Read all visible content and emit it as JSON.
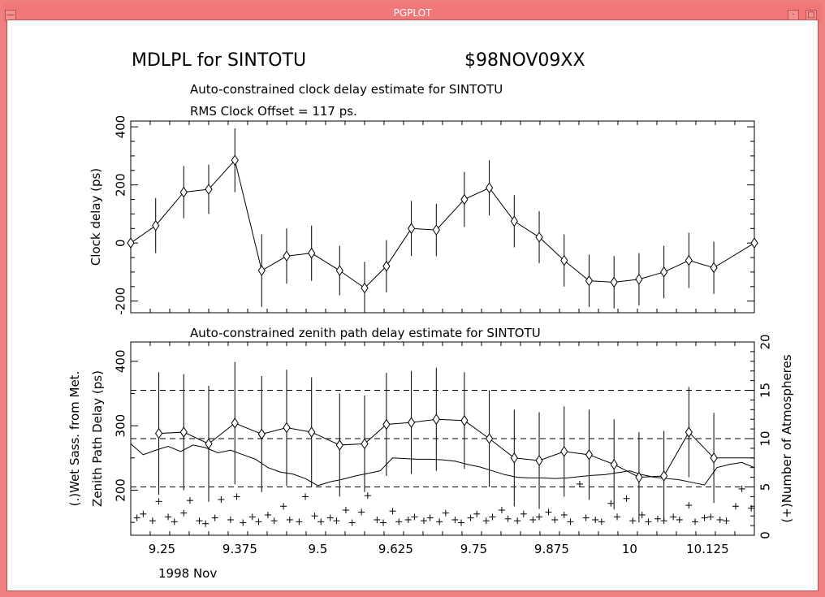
{
  "window": {
    "title": "PGPLOT"
  },
  "header": {
    "left": "MDLPL for SINTOTU",
    "right": "$98NOV09XX"
  },
  "chart_data": [
    {
      "type": "line",
      "title": "Auto-constrained clock delay estimate for SINTOTU",
      "subtitle": "RMS Clock Offset = 117 ps.",
      "ylabel": "Clock delay (ps)",
      "xlim": [
        9.2,
        10.2
      ],
      "ylim": [
        -240,
        420
      ],
      "yticks": [
        "-200",
        "0",
        "200",
        "400"
      ],
      "series": [
        {
          "x": [
            9.2,
            9.24,
            9.285,
            9.325,
            9.367,
            9.41,
            9.45,
            9.49,
            9.535,
            9.575,
            9.61,
            9.65,
            9.69,
            9.735,
            9.775,
            9.815,
            9.855,
            9.895,
            9.935,
            9.975,
            10.015,
            10.055,
            10.095,
            10.135,
            10.2
          ],
          "values": [
            0,
            60,
            175,
            185,
            285,
            -95,
            -45,
            -35,
            -95,
            -155,
            -80,
            50,
            45,
            150,
            190,
            75,
            20,
            -60,
            -130,
            -135,
            -125,
            -100,
            -60,
            -85,
            0
          ],
          "errors": [
            0,
            95,
            90,
            85,
            110,
            125,
            95,
            95,
            85,
            90,
            90,
            95,
            90,
            95,
            95,
            90,
            90,
            90,
            90,
            90,
            90,
            90,
            95,
            90,
            0
          ]
        }
      ]
    },
    {
      "type": "line",
      "title": "Auto-constrained zenith path delay estimate for SINTOTU",
      "ylabel": "Zenith Path Delay (ps)",
      "ylabel2": "(.)Wet Sass. from Met.",
      "y2label": "(+)Number of Atmospheres",
      "xlabel": "1998 Nov",
      "xlim": [
        9.2,
        10.2
      ],
      "ylim": [
        130,
        430
      ],
      "y2lim": [
        0,
        20
      ],
      "xticks": [
        "9.25",
        "9.375",
        "9.5",
        "9.625",
        "9.75",
        "9.875",
        "10",
        "10.125"
      ],
      "yticks": [
        "200",
        "300",
        "400"
      ],
      "y2ticks": [
        "0",
        "5",
        "10",
        "15",
        "20"
      ],
      "hlines_y2": [
        5,
        10,
        15
      ],
      "series": [
        {
          "x": [
            9.245,
            9.285,
            9.325,
            9.367,
            9.41,
            9.45,
            9.49,
            9.535,
            9.575,
            9.61,
            9.65,
            9.69,
            9.735,
            9.775,
            9.815,
            9.855,
            9.895,
            9.935,
            9.975,
            10.015,
            10.055,
            10.095,
            10.135,
            10.2
          ],
          "values": [
            288,
            290,
            272,
            304,
            287,
            297,
            290,
            270,
            272,
            302,
            305,
            310,
            308,
            280,
            250,
            246,
            260,
            255,
            240,
            220,
            222,
            290,
            250,
            250
          ],
          "errors": [
            95,
            90,
            90,
            95,
            90,
            90,
            85,
            80,
            75,
            80,
            80,
            80,
            75,
            75,
            75,
            75,
            70,
            70,
            70,
            70,
            70,
            70,
            70,
            0
          ]
        },
        {
          "name": "Wet Sass. from Met.",
          "x": [
            9.2,
            9.22,
            9.24,
            9.26,
            9.28,
            9.3,
            9.32,
            9.34,
            9.36,
            9.38,
            9.4,
            9.42,
            9.44,
            9.46,
            9.48,
            9.5,
            9.52,
            9.54,
            9.56,
            9.58,
            9.6,
            9.62,
            9.64,
            9.66,
            9.68,
            9.7,
            9.72,
            9.74,
            9.76,
            9.78,
            9.8,
            9.82,
            9.84,
            9.86,
            9.88,
            9.9,
            9.92,
            9.94,
            9.96,
            9.98,
            10.0,
            10.02,
            10.04,
            10.06,
            10.08,
            10.1,
            10.12,
            10.14,
            10.16,
            10.18,
            10.2
          ],
          "values": [
            272,
            255,
            262,
            268,
            260,
            270,
            266,
            258,
            262,
            255,
            248,
            235,
            228,
            225,
            218,
            207,
            213,
            217,
            222,
            226,
            230,
            250,
            249,
            248,
            248,
            247,
            245,
            240,
            236,
            230,
            224,
            220,
            219,
            219,
            218,
            219,
            221,
            223,
            224,
            227,
            230,
            224,
            220,
            218,
            216,
            212,
            208,
            235,
            240,
            243,
            235
          ]
        }
      ],
      "atmospheres": {
        "x": [
          9.21,
          9.22,
          9.235,
          9.245,
          9.26,
          9.27,
          9.285,
          9.295,
          9.31,
          9.32,
          9.335,
          9.345,
          9.36,
          9.37,
          9.38,
          9.395,
          9.405,
          9.42,
          9.43,
          9.445,
          9.455,
          9.47,
          9.48,
          9.495,
          9.505,
          9.52,
          9.53,
          9.545,
          9.555,
          9.57,
          9.58,
          9.595,
          9.605,
          9.62,
          9.63,
          9.645,
          9.655,
          9.67,
          9.68,
          9.695,
          9.705,
          9.72,
          9.73,
          9.745,
          9.755,
          9.77,
          9.78,
          9.795,
          9.805,
          9.82,
          9.83,
          9.845,
          9.855,
          9.87,
          9.88,
          9.895,
          9.905,
          9.92,
          9.93,
          9.945,
          9.955,
          9.97,
          9.98,
          9.995,
          10.005,
          10.02,
          10.03,
          10.045,
          10.055,
          10.07,
          10.08,
          10.095,
          10.105,
          10.12,
          10.13,
          10.145,
          10.155,
          10.17,
          10.18,
          10.195
        ],
        "values": [
          1.8,
          2.2,
          1.5,
          3.5,
          1.9,
          1.4,
          2.3,
          3.6,
          1.5,
          1.2,
          1.8,
          3.7,
          1.6,
          4.0,
          1.3,
          1.9,
          1.4,
          2.1,
          1.5,
          3.0,
          1.6,
          1.4,
          4.0,
          2.0,
          1.4,
          1.8,
          1.5,
          2.6,
          1.3,
          2.4,
          4.1,
          1.6,
          1.3,
          2.5,
          1.4,
          1.6,
          1.9,
          1.5,
          1.8,
          1.4,
          2.3,
          1.6,
          1.3,
          1.8,
          2.2,
          1.5,
          1.9,
          2.6,
          1.7,
          1.5,
          2.2,
          1.6,
          1.9,
          2.4,
          1.6,
          2.1,
          1.4,
          5.3,
          1.8,
          1.6,
          1.4,
          3.3,
          1.9,
          3.8,
          1.5,
          2.1,
          1.4,
          1.7,
          1.5,
          1.9,
          1.6,
          3.1,
          1.4,
          1.8,
          1.9,
          1.6,
          1.5,
          3.0,
          4.8,
          2.8
        ]
      }
    }
  ]
}
